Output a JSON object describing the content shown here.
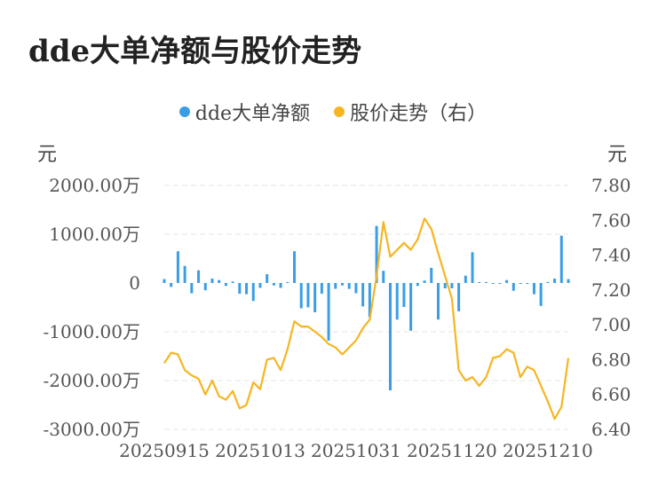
{
  "chart_data": {
    "type": "bar+line",
    "title": "dde大单净额与股价走势",
    "legend": [
      "dde大单净额",
      "股价走势（右）"
    ],
    "legend_position": "top",
    "left_unit": "元",
    "right_unit": "元",
    "colors": {
      "bar": "#3a9ee6",
      "line": "#f5b622",
      "grid": "#e6e6e6"
    },
    "left_axis": {
      "ticks": [
        "2000.00万",
        "1000.00万",
        "0",
        "-1000.00万",
        "-2000.00万",
        "-3000.00万"
      ],
      "tick_values": [
        2000,
        1000,
        0,
        -1000,
        -2000,
        -3000
      ],
      "ylim": [
        -3000,
        2000
      ]
    },
    "right_axis": {
      "ticks": [
        "7.80",
        "7.60",
        "7.40",
        "7.20",
        "7.00",
        "6.80",
        "6.60",
        "6.40"
      ],
      "tick_values": [
        7.8,
        7.6,
        7.4,
        7.2,
        7.0,
        6.8,
        6.6,
        6.4
      ],
      "ylim": [
        6.4,
        7.8
      ]
    },
    "x_labels": [
      "20250915",
      "20251013",
      "20251031",
      "20251120",
      "20251210"
    ],
    "x_label_index": [
      0,
      14,
      28,
      42,
      56
    ],
    "grid": true,
    "bars": [
      80,
      -80,
      650,
      350,
      -210,
      260,
      -150,
      90,
      60,
      -60,
      30,
      -220,
      -230,
      -370,
      -100,
      180,
      -50,
      -100,
      20,
      650,
      -520,
      -500,
      -600,
      -220,
      -1180,
      -120,
      -50,
      -120,
      -210,
      -480,
      -700,
      1170,
      250,
      -2200,
      -750,
      -490,
      -980,
      -60,
      50,
      310,
      -750,
      -110,
      -110,
      -580,
      150,
      630,
      20,
      20,
      0,
      0,
      60,
      -160,
      0,
      0,
      -230,
      -470,
      20,
      90,
      970,
      80
    ],
    "line": [
      6.78,
      6.84,
      6.83,
      6.74,
      6.71,
      6.69,
      6.6,
      6.68,
      6.59,
      6.57,
      6.62,
      6.52,
      6.54,
      6.67,
      6.63,
      6.8,
      6.81,
      6.74,
      6.86,
      7.02,
      6.99,
      6.99,
      6.96,
      6.93,
      6.89,
      6.87,
      6.83,
      6.87,
      6.91,
      6.98,
      7.03,
      7.28,
      7.59,
      7.39,
      7.43,
      7.47,
      7.43,
      7.49,
      7.61,
      7.55,
      7.41,
      7.28,
      7.15,
      6.74,
      6.68,
      6.7,
      6.65,
      6.7,
      6.81,
      6.82,
      6.86,
      6.84,
      6.7,
      6.76,
      6.74,
      6.65,
      6.56,
      6.46,
      6.53,
      6.81
    ]
  }
}
